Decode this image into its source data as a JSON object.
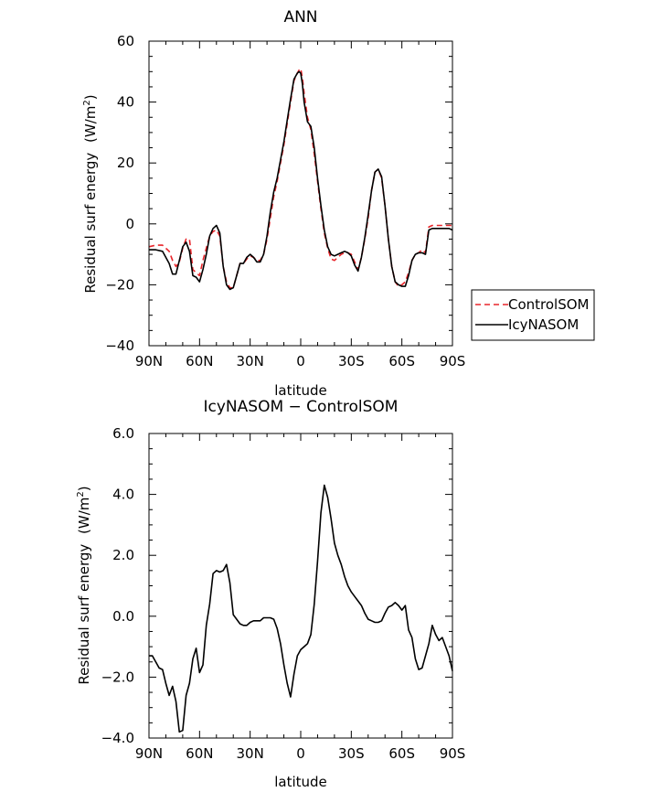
{
  "chart_data": [
    {
      "type": "line",
      "title": "ANN",
      "xlabel": "latitude",
      "ylabel": "Residual surf energy",
      "ylabel_unit_prefix": "(W/m",
      "ylabel_unit_sup": "2",
      "ylabel_unit_suffix": ")",
      "xlim": [
        90,
        -90
      ],
      "ylim": [
        -40,
        60
      ],
      "xticks": [
        90,
        60,
        30,
        0,
        -30,
        -60,
        -90
      ],
      "xticklabels": [
        "90N",
        "60N",
        "30N",
        "0",
        "30S",
        "60S",
        "90S"
      ],
      "yticks": [
        -40,
        -20,
        0,
        20,
        40,
        60
      ],
      "yticklabels": [
        "−40",
        "−20",
        "0",
        "20",
        "40",
        "60"
      ],
      "legend_position": "right",
      "series": [
        {
          "name": "ControlSOM",
          "color": "#e8262b",
          "dash": "dashed",
          "x": [
            90,
            86,
            82,
            78,
            76,
            74,
            72,
            70,
            68,
            66,
            64,
            62,
            60,
            58,
            56,
            54,
            52,
            50,
            48,
            46,
            44,
            42,
            40,
            38,
            36,
            34,
            32,
            30,
            28,
            26,
            24,
            22,
            20,
            18,
            16,
            14,
            12,
            10,
            8,
            6,
            4,
            2,
            1,
            0,
            -1,
            -2,
            -4,
            -6,
            -8,
            -10,
            -12,
            -14,
            -16,
            -18,
            -20,
            -22,
            -24,
            -26,
            -28,
            -30,
            -32,
            -34,
            -36,
            -38,
            -40,
            -42,
            -44,
            -46,
            -48,
            -50,
            -52,
            -54,
            -56,
            -58,
            -60,
            -62,
            -64,
            -66,
            -68,
            -70,
            -72,
            -74,
            -76,
            -78,
            -80,
            -82,
            -84,
            -86,
            -88,
            -90
          ],
          "y": [
            -7.5,
            -7,
            -7,
            -9,
            -12,
            -14,
            -12.5,
            -8,
            -5,
            -5,
            -15,
            -16,
            -17,
            -12,
            -8,
            -4,
            -2.5,
            -2,
            -4,
            -14,
            -19,
            -21,
            -21,
            -17,
            -13,
            -13,
            -11.5,
            -10.5,
            -11,
            -12,
            -12,
            -10,
            -5,
            2,
            9,
            14,
            20,
            26,
            33,
            40,
            47,
            49.5,
            50.5,
            51,
            48,
            43,
            35,
            31,
            23,
            14,
            5,
            -3,
            -8,
            -11.5,
            -12,
            -11,
            -10,
            -9.5,
            -9.5,
            -10,
            -12.5,
            -15,
            -11,
            -5,
            2,
            11,
            17,
            18,
            15,
            6,
            -5,
            -14,
            -19,
            -20.5,
            -20,
            -19,
            -16,
            -12,
            -10,
            -9.5,
            -8.5,
            -9.5,
            -1,
            -0.5,
            -0.5,
            -0.5,
            -0.5,
            -0.5,
            -0.5,
            -0.5
          ]
        },
        {
          "name": "IcyNASOM",
          "color": "#000000",
          "dash": "solid",
          "x": [
            90,
            86,
            82,
            78,
            76,
            74,
            72,
            70,
            68,
            66,
            64,
            62,
            60,
            58,
            56,
            54,
            52,
            50,
            48,
            46,
            44,
            42,
            40,
            38,
            36,
            34,
            32,
            30,
            28,
            26,
            24,
            22,
            20,
            18,
            16,
            14,
            12,
            10,
            8,
            6,
            4,
            2,
            1,
            0,
            -1,
            -2,
            -4,
            -6,
            -8,
            -10,
            -12,
            -14,
            -16,
            -18,
            -20,
            -22,
            -24,
            -26,
            -28,
            -30,
            -32,
            -34,
            -36,
            -38,
            -40,
            -42,
            -44,
            -46,
            -48,
            -50,
            -52,
            -54,
            -56,
            -58,
            -60,
            -62,
            -64,
            -66,
            -68,
            -70,
            -72,
            -74,
            -76,
            -78,
            -80,
            -82,
            -84,
            -86,
            -88,
            -90
          ],
          "y": [
            -8.5,
            -8.5,
            -9,
            -13,
            -16.5,
            -16.5,
            -12,
            -7.5,
            -6,
            -9,
            -17,
            -17.5,
            -19,
            -15,
            -10,
            -4,
            -1.5,
            -0.5,
            -3,
            -14,
            -20,
            -21.5,
            -21,
            -17,
            -13,
            -13,
            -11,
            -10,
            -11,
            -12.5,
            -12.5,
            -10,
            -4,
            4,
            10.5,
            15,
            21,
            27,
            34,
            41,
            47.5,
            49.5,
            50,
            49.5,
            46,
            40,
            33.5,
            32,
            25,
            15,
            6,
            -2,
            -7.5,
            -10,
            -10.5,
            -10,
            -9.5,
            -9,
            -9.5,
            -10.5,
            -13.5,
            -15.5,
            -11,
            -4.5,
            3,
            11,
            17,
            18,
            15.5,
            6,
            -5,
            -14,
            -19,
            -20,
            -20.5,
            -20.5,
            -17,
            -12,
            -10,
            -9.5,
            -9.5,
            -10,
            -2,
            -1.5,
            -1.5,
            -1.5,
            -1.5,
            -1.5,
            -1.5,
            -2
          ]
        }
      ]
    },
    {
      "type": "line",
      "title": "IcyNASOM − ControlSOM",
      "xlabel": "latitude",
      "ylabel": "Residual surf energy",
      "ylabel_unit_prefix": "(W/m",
      "ylabel_unit_sup": "2",
      "ylabel_unit_suffix": ")",
      "xlim": [
        90,
        -90
      ],
      "ylim": [
        -4,
        6
      ],
      "xticks": [
        90,
        60,
        30,
        0,
        -30,
        -60,
        -90
      ],
      "xticklabels": [
        "90N",
        "60N",
        "30N",
        "0",
        "30S",
        "60S",
        "90S"
      ],
      "yticks": [
        -4,
        -2,
        0,
        2,
        4,
        6
      ],
      "yticklabels": [
        "−4.0",
        "−2.0",
        "0.0",
        "2.0",
        "4.0",
        "6.0"
      ],
      "series": [
        {
          "color": "#000000",
          "dash": "solid",
          "x": [
            90,
            88,
            86,
            84,
            82,
            80,
            78,
            76,
            74,
            72,
            70,
            68,
            66,
            64,
            62,
            60,
            58,
            56,
            54,
            52,
            50,
            48,
            46,
            44,
            42,
            40,
            38,
            36,
            34,
            32,
            30,
            28,
            26,
            24,
            22,
            20,
            18,
            16,
            14,
            12,
            10,
            8,
            6,
            4,
            2,
            0,
            -2,
            -4,
            -6,
            -8,
            -10,
            -12,
            -14,
            -16,
            -18,
            -20,
            -22,
            -24,
            -26,
            -28,
            -30,
            -32,
            -34,
            -36,
            -38,
            -40,
            -42,
            -44,
            -46,
            -48,
            -50,
            -52,
            -54,
            -56,
            -58,
            -60,
            -62,
            -64,
            -66,
            -68,
            -70,
            -72,
            -74,
            -76,
            -78,
            -80,
            -82,
            -84,
            -86,
            -88,
            -90
          ],
          "y": [
            -1.3,
            -1.3,
            -1.5,
            -1.7,
            -1.75,
            -2.2,
            -2.6,
            -2.3,
            -2.8,
            -3.8,
            -3.75,
            -2.6,
            -2.2,
            -1.4,
            -1.05,
            -1.85,
            -1.6,
            -0.3,
            0.4,
            1.4,
            1.5,
            1.45,
            1.5,
            1.7,
            1.1,
            0.05,
            -0.1,
            -0.25,
            -0.3,
            -0.3,
            -0.2,
            -0.15,
            -0.15,
            -0.15,
            -0.05,
            -0.05,
            -0.05,
            -0.1,
            -0.4,
            -0.9,
            -1.6,
            -2.2,
            -2.65,
            -1.9,
            -1.3,
            -1.1,
            -1.0,
            -0.9,
            -0.6,
            0.4,
            1.8,
            3.4,
            4.3,
            3.9,
            3.2,
            2.4,
            2.0,
            1.7,
            1.3,
            1.0,
            0.8,
            0.65,
            0.5,
            0.35,
            0.1,
            -0.1,
            -0.15,
            -0.2,
            -0.2,
            -0.15,
            0.1,
            0.3,
            0.35,
            0.45,
            0.35,
            0.2,
            0.35,
            -0.45,
            -0.7,
            -1.4,
            -1.75,
            -1.7,
            -1.3,
            -0.9,
            -0.3,
            -0.6,
            -0.8,
            -0.7,
            -1.0,
            -1.3,
            -1.8
          ]
        }
      ]
    }
  ]
}
